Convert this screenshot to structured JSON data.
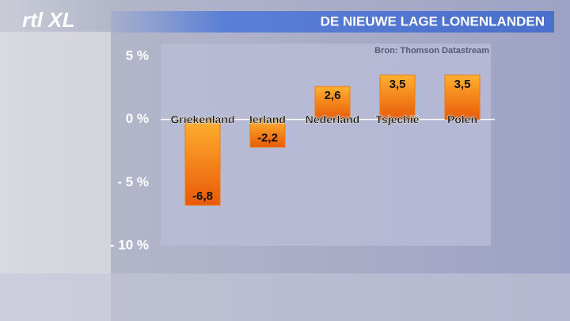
{
  "logo": "rtl XL",
  "chart_data": {
    "type": "bar",
    "title": "DE NIEUWE LAGE LONENLANDEN",
    "source": "Bron: Thomson Datastream",
    "categories": [
      "Griekenland",
      "Ierland",
      "Nederland",
      "Tsjechië",
      "Polen"
    ],
    "values": [
      -6.8,
      -2.2,
      2.6,
      3.5,
      3.5
    ],
    "value_labels": [
      "-6,8",
      "-2,2",
      "2,6",
      "3,5",
      "3,5"
    ],
    "color": "#f07a10",
    "ylim": [
      -10,
      6
    ],
    "yticks": [
      {
        "value": 5,
        "label": "5 %"
      },
      {
        "value": 0,
        "label": "0 %"
      },
      {
        "value": -5,
        "label": "- 5 %"
      },
      {
        "value": -10,
        "label": "- 10 %"
      }
    ]
  }
}
